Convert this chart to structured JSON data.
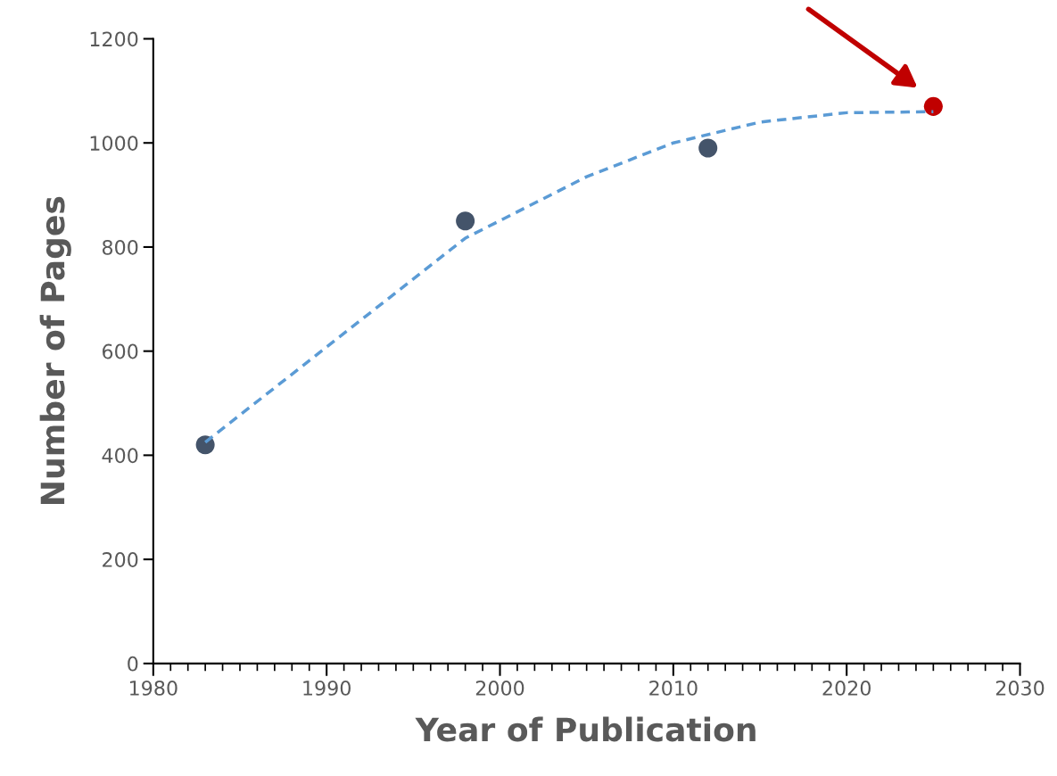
{
  "chart_data": {
    "type": "scatter",
    "xlabel": "Year of Publication",
    "ylabel": "Number of Pages",
    "series": [
      {
        "color": "#44546a",
        "x": [
          1983,
          1998,
          2012
        ],
        "values": [
          420,
          850,
          990
        ],
        "marker": "circle"
      },
      {
        "color": "#c00000",
        "x": [
          2025
        ],
        "values": [
          1070
        ],
        "marker": "circle"
      },
      {
        "type": "line",
        "color": "#5b9bd5",
        "line_style": "dashed",
        "marker": "none",
        "x": [
          1983,
          1990,
          1998,
          2005,
          2010,
          2015,
          2020,
          2025
        ],
        "values": [
          425,
          608,
          817,
          935,
          1000,
          1040,
          1058,
          1060
        ]
      }
    ],
    "xlim": [
      1980,
      2030
    ],
    "ylim": [
      0,
      1200
    ],
    "xticks": [
      1980,
      {
        "value": 1981,
        "label": null
      },
      {
        "value": 1982,
        "label": null
      },
      {
        "value": 1983,
        "label": null
      },
      {
        "value": 1984,
        "label": null
      },
      {
        "value": 1985,
        "label": null
      },
      {
        "value": 1986,
        "label": null
      },
      {
        "value": 1987,
        "label": null
      },
      {
        "value": 1988,
        "label": null
      },
      {
        "value": 1989,
        "label": null
      },
      1990,
      {
        "value": 1991,
        "label": null
      },
      {
        "value": 1992,
        "label": null
      },
      {
        "value": 1993,
        "label": null
      },
      {
        "value": 1994,
        "label": null
      },
      {
        "value": 1995,
        "label": null
      },
      {
        "value": 1996,
        "label": null
      },
      {
        "value": 1997,
        "label": null
      },
      {
        "value": 1998,
        "label": null
      },
      {
        "value": 1999,
        "label": null
      },
      2000,
      {
        "value": 2001,
        "label": null
      },
      {
        "value": 2002,
        "label": null
      },
      {
        "value": 2003,
        "label": null
      },
      {
        "value": 2004,
        "label": null
      },
      {
        "value": 2005,
        "label": null
      },
      {
        "value": 2006,
        "label": null
      },
      {
        "value": 2007,
        "label": null
      },
      {
        "value": 2008,
        "label": null
      },
      {
        "value": 2009,
        "label": null
      },
      2010,
      {
        "value": 2011,
        "label": null
      },
      {
        "value": 2012,
        "label": null
      },
      {
        "value": 2013,
        "label": null
      },
      {
        "value": 2014,
        "label": null
      },
      {
        "value": 2015,
        "label": null
      },
      {
        "value": 2016,
        "label": null
      },
      {
        "value": 2017,
        "label": null
      },
      {
        "value": 2018,
        "label": null
      },
      {
        "value": 2019,
        "label": null
      },
      2020,
      {
        "value": 2021,
        "label": null
      },
      {
        "value": 2022,
        "label": null
      },
      {
        "value": 2023,
        "label": null
      },
      {
        "value": 2024,
        "label": null
      },
      {
        "value": 2025,
        "label": null
      },
      {
        "value": 2026,
        "label": null
      },
      {
        "value": 2027,
        "label": null
      },
      {
        "value": 2028,
        "label": null
      },
      {
        "value": 2029,
        "label": null
      },
      2030
    ],
    "yticks": [
      0,
      200,
      400,
      600,
      800,
      1000,
      1200
    ],
    "grid": false,
    "legend": false
  }
}
